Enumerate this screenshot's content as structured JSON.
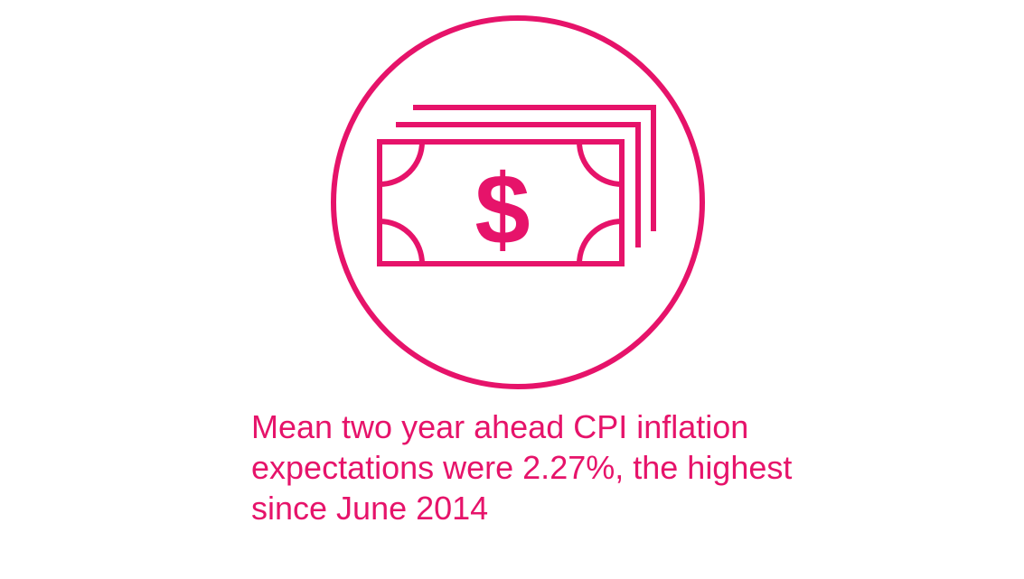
{
  "accent_color": "#E6136A",
  "icon": {
    "name": "money-banknotes-icon",
    "symbol": "$"
  },
  "caption": {
    "text": "Mean two year ahead CPI inflation\nexpectations were 2.27%, the highest\nsince June 2014"
  }
}
